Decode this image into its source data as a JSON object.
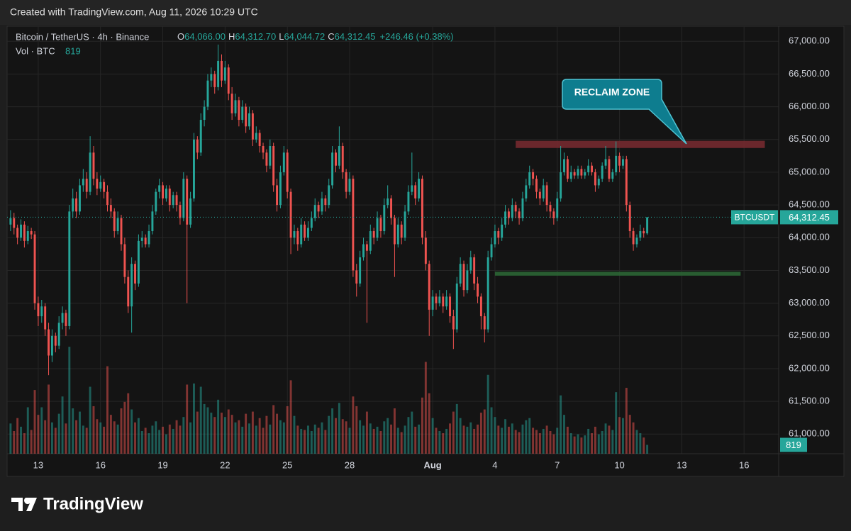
{
  "header": {
    "created": "Created with TradingView.com, Aug 11, 2026 10:29 UTC"
  },
  "footer": {
    "brand": "TradingView"
  },
  "chart_data": {
    "type": "candlestick",
    "title": "Bitcoin / TetherUS · 4h · Binance",
    "legend": [
      {
        "key": "O",
        "value": "64,066.00"
      },
      {
        "key": "H",
        "value": "64,312.70"
      },
      {
        "key": "L",
        "value": "64,044.72"
      },
      {
        "key": "C",
        "value": "64,312.45"
      }
    ],
    "change": "+246.46 (+0.38%)",
    "volume_title": "Vol · BTC",
    "volume_value": "819",
    "symbol": "BTCUSDT",
    "last_price_label": "64,312.45",
    "last_volume_label": "819",
    "annotation": "RECLAIM ZONE",
    "up_color": "#26a69a",
    "down_color": "#ef5350",
    "zones": [
      {
        "color": "#7a2a30",
        "y": [
          65370,
          65480
        ],
        "x": [
          146,
          218
        ]
      },
      {
        "color": "#2d6a36",
        "y": [
          63420,
          63480
        ],
        "x": [
          140,
          211
        ]
      }
    ],
    "ylim": [
      60700,
      67230
    ],
    "yticks": [
      {
        "value": 61000,
        "label": "61,000.00"
      },
      {
        "value": 61500,
        "label": "61,500.00"
      },
      {
        "value": 62000,
        "label": "62,000.00"
      },
      {
        "value": 62500,
        "label": "62,500.00"
      },
      {
        "value": 63000,
        "label": "63,000.00"
      },
      {
        "value": 63500,
        "label": "63,500.00"
      },
      {
        "value": 64000,
        "label": "64,000.00"
      },
      {
        "value": 64500,
        "label": "64,500.00"
      },
      {
        "value": 65000,
        "label": "65,000.00"
      },
      {
        "value": 65500,
        "label": "65,500.00"
      },
      {
        "value": 66000,
        "label": "66,000.00"
      },
      {
        "value": 66500,
        "label": "66,500.00"
      },
      {
        "value": 67000,
        "label": "67,000.00"
      }
    ],
    "xlim": [
      -1,
      222
    ],
    "xticks": [
      {
        "value": 8,
        "label": "13"
      },
      {
        "value": 26,
        "label": "16"
      },
      {
        "value": 44,
        "label": "19"
      },
      {
        "value": 62,
        "label": "22"
      },
      {
        "value": 80,
        "label": "25"
      },
      {
        "value": 98,
        "label": "28"
      },
      {
        "value": 122,
        "label": "Aug"
      },
      {
        "value": 140,
        "label": "4"
      },
      {
        "value": 158,
        "label": "7"
      },
      {
        "value": 176,
        "label": "10"
      },
      {
        "value": 194,
        "label": "13"
      },
      {
        "value": 212,
        "label": "16"
      }
    ],
    "y2lim": [
      0,
      10500
    ],
    "grid": true,
    "ohlc": [
      [
        64200,
        64420,
        64100,
        64300
      ],
      [
        64300,
        64380,
        64050,
        64150
      ],
      [
        64150,
        64200,
        63900,
        64000
      ],
      [
        64000,
        64280,
        63950,
        64200
      ],
      [
        64200,
        64250,
        63850,
        63950
      ],
      [
        63950,
        64180,
        63900,
        64100
      ],
      [
        64100,
        64150,
        63980,
        64050
      ],
      [
        64050,
        64100,
        62900,
        63000
      ],
      [
        63000,
        63100,
        62650,
        62800
      ],
      [
        62800,
        63050,
        62700,
        62950
      ],
      [
        62950,
        63000,
        62500,
        62600
      ],
      [
        62600,
        62700,
        61900,
        62200
      ],
      [
        62200,
        62600,
        62100,
        62500
      ],
      [
        62500,
        62550,
        62250,
        62350
      ],
      [
        62350,
        62800,
        62300,
        62700
      ],
      [
        62700,
        62950,
        62600,
        62850
      ],
      [
        62850,
        62900,
        62500,
        62650
      ],
      [
        62650,
        64500,
        62600,
        64400
      ],
      [
        64400,
        64750,
        64300,
        64600
      ],
      [
        64600,
        64700,
        64300,
        64400
      ],
      [
        64400,
        64900,
        64350,
        64800
      ],
      [
        64800,
        65050,
        64700,
        64900
      ],
      [
        64900,
        65000,
        64600,
        64700
      ],
      [
        64700,
        65550,
        64650,
        65300
      ],
      [
        65300,
        65400,
        64800,
        64900
      ],
      [
        64900,
        65000,
        64650,
        64750
      ],
      [
        64750,
        64950,
        64700,
        64850
      ],
      [
        64850,
        64900,
        64600,
        64700
      ],
      [
        64700,
        64800,
        64400,
        64500
      ],
      [
        64500,
        64600,
        64300,
        64400
      ],
      [
        64400,
        64450,
        64000,
        64100
      ],
      [
        64100,
        64400,
        64050,
        64300
      ],
      [
        64300,
        64350,
        63800,
        63900
      ],
      [
        63900,
        64000,
        63300,
        63400
      ],
      [
        63400,
        63500,
        62850,
        62950
      ],
      [
        62950,
        63700,
        62550,
        63600
      ],
      [
        63600,
        63650,
        63200,
        63300
      ],
      [
        63300,
        64050,
        63250,
        63950
      ],
      [
        63950,
        64100,
        63850,
        64000
      ],
      [
        64000,
        64050,
        63850,
        63900
      ],
      [
        63900,
        64200,
        63850,
        64100
      ],
      [
        64100,
        64500,
        64050,
        64400
      ],
      [
        64400,
        64750,
        64350,
        64700
      ],
      [
        64700,
        64900,
        64600,
        64800
      ],
      [
        64800,
        64850,
        64500,
        64600
      ],
      [
        64600,
        64800,
        64550,
        64750
      ],
      [
        64750,
        64800,
        64400,
        64500
      ],
      [
        64500,
        64700,
        64450,
        64650
      ],
      [
        64650,
        64700,
        64400,
        64500
      ],
      [
        64500,
        64550,
        64200,
        64300
      ],
      [
        64300,
        65000,
        64250,
        64900
      ],
      [
        64900,
        64950,
        63000,
        64200
      ],
      [
        64200,
        64700,
        64150,
        64600
      ],
      [
        64600,
        65600,
        64550,
        65500
      ],
      [
        65500,
        65550,
        65200,
        65300
      ],
      [
        65300,
        65900,
        65250,
        65800
      ],
      [
        65800,
        66100,
        65700,
        66000
      ],
      [
        66000,
        66500,
        65950,
        66400
      ],
      [
        66400,
        66600,
        66300,
        66500
      ],
      [
        66500,
        66550,
        66200,
        66300
      ],
      [
        66300,
        66950,
        66250,
        66700
      ],
      [
        66700,
        66800,
        66300,
        66400
      ],
      [
        66400,
        66700,
        66350,
        66600
      ],
      [
        66600,
        66650,
        66100,
        66200
      ],
      [
        66200,
        66300,
        65800,
        65900
      ],
      [
        65900,
        66200,
        65850,
        66100
      ],
      [
        66100,
        66150,
        65700,
        65800
      ],
      [
        65800,
        66100,
        65750,
        66000
      ],
      [
        66000,
        66050,
        65600,
        65700
      ],
      [
        65700,
        66000,
        65650,
        65900
      ],
      [
        65900,
        65950,
        65400,
        65500
      ],
      [
        65500,
        65700,
        65450,
        65600
      ],
      [
        65600,
        65650,
        65300,
        65400
      ],
      [
        65400,
        65450,
        65200,
        65300
      ],
      [
        65300,
        65350,
        65000,
        65100
      ],
      [
        65100,
        65500,
        65050,
        65400
      ],
      [
        65400,
        65450,
        64700,
        64800
      ],
      [
        64800,
        64900,
        64400,
        64500
      ],
      [
        64500,
        65100,
        64450,
        65000
      ],
      [
        65000,
        65400,
        64950,
        65300
      ],
      [
        65300,
        65350,
        64600,
        64700
      ],
      [
        64700,
        64750,
        63750,
        64000
      ],
      [
        64000,
        64200,
        63900,
        64100
      ],
      [
        64100,
        64150,
        63800,
        63900
      ],
      [
        63900,
        64300,
        63850,
        64200
      ],
      [
        64200,
        64250,
        63950,
        64000
      ],
      [
        64000,
        64250,
        63950,
        64150
      ],
      [
        64150,
        64400,
        64100,
        64300
      ],
      [
        64300,
        64600,
        64250,
        64500
      ],
      [
        64500,
        64550,
        64300,
        64400
      ],
      [
        64400,
        64700,
        64350,
        64600
      ],
      [
        64600,
        64650,
        64400,
        64500
      ],
      [
        64500,
        64900,
        64450,
        64800
      ],
      [
        64800,
        65400,
        64750,
        65300
      ],
      [
        65300,
        65350,
        65000,
        65100
      ],
      [
        65100,
        65700,
        65050,
        65400
      ],
      [
        65400,
        65450,
        64900,
        65000
      ],
      [
        65000,
        65050,
        64600,
        64700
      ],
      [
        64700,
        65000,
        64650,
        64900
      ],
      [
        64900,
        64950,
        63400,
        63500
      ],
      [
        63500,
        63600,
        63100,
        63300
      ],
      [
        63300,
        63800,
        63250,
        63700
      ],
      [
        63700,
        64000,
        63650,
        63900
      ],
      [
        63900,
        63950,
        62700,
        63800
      ],
      [
        63800,
        64200,
        63750,
        64100
      ],
      [
        64100,
        64150,
        63900,
        64000
      ],
      [
        64000,
        64400,
        63950,
        64300
      ],
      [
        64300,
        64350,
        64000,
        64100
      ],
      [
        64100,
        64600,
        64050,
        64500
      ],
      [
        64500,
        64800,
        64450,
        64600
      ],
      [
        64600,
        64650,
        64200,
        64300
      ],
      [
        64300,
        64350,
        63400,
        63900
      ],
      [
        63900,
        64300,
        63850,
        64200
      ],
      [
        64200,
        64250,
        63900,
        64000
      ],
      [
        64000,
        64500,
        63950,
        64400
      ],
      [
        64400,
        64800,
        64350,
        64700
      ],
      [
        64700,
        65300,
        64650,
        64800
      ],
      [
        64800,
        64850,
        64500,
        64600
      ],
      [
        64600,
        65000,
        64550,
        64900
      ],
      [
        64900,
        64950,
        63900,
        64000
      ],
      [
        64000,
        64100,
        63500,
        63600
      ],
      [
        63600,
        63650,
        62500,
        62900
      ],
      [
        62900,
        63200,
        62800,
        63100
      ],
      [
        63100,
        63150,
        62900,
        63000
      ],
      [
        63000,
        63200,
        62950,
        63100
      ],
      [
        63100,
        63150,
        62850,
        62950
      ],
      [
        62950,
        63200,
        62900,
        63100
      ],
      [
        63100,
        63150,
        62700,
        62800
      ],
      [
        62800,
        62900,
        62300,
        62600
      ],
      [
        62600,
        63400,
        62550,
        63300
      ],
      [
        63300,
        63700,
        63250,
        63600
      ],
      [
        63600,
        63650,
        63100,
        63200
      ],
      [
        63200,
        63600,
        63150,
        63500
      ],
      [
        63500,
        63800,
        63450,
        63700
      ],
      [
        63700,
        63750,
        63200,
        63300
      ],
      [
        63300,
        63400,
        63000,
        63100
      ],
      [
        63100,
        63150,
        62600,
        62800
      ],
      [
        62800,
        62850,
        62400,
        62600
      ],
      [
        62600,
        63800,
        62550,
        63700
      ],
      [
        63700,
        64000,
        63650,
        63900
      ],
      [
        63900,
        64200,
        63850,
        64100
      ],
      [
        64100,
        64150,
        63900,
        64000
      ],
      [
        64000,
        64300,
        63950,
        64200
      ],
      [
        64200,
        64500,
        64150,
        64400
      ],
      [
        64400,
        64450,
        64200,
        64300
      ],
      [
        64300,
        64600,
        64250,
        64500
      ],
      [
        64500,
        64550,
        64300,
        64400
      ],
      [
        64400,
        64450,
        64200,
        64300
      ],
      [
        64300,
        64700,
        64250,
        64600
      ],
      [
        64600,
        64900,
        64550,
        64800
      ],
      [
        64800,
        65100,
        64750,
        65000
      ],
      [
        65000,
        65050,
        64800,
        64900
      ],
      [
        64900,
        64950,
        64600,
        64700
      ],
      [
        64700,
        64750,
        64500,
        64600
      ],
      [
        64600,
        64900,
        64550,
        64800
      ],
      [
        64800,
        64850,
        64400,
        64500
      ],
      [
        64500,
        64550,
        64300,
        64400
      ],
      [
        64400,
        64450,
        64200,
        64300
      ],
      [
        64300,
        64700,
        64250,
        64600
      ],
      [
        64600,
        65400,
        64550,
        65000
      ],
      [
        65000,
        65300,
        64950,
        65200
      ],
      [
        65200,
        65250,
        64850,
        64900
      ],
      [
        64900,
        65100,
        64850,
        65000
      ],
      [
        65000,
        65050,
        64900,
        64950
      ],
      [
        64950,
        65100,
        64900,
        65050
      ],
      [
        65050,
        65100,
        64900,
        64950
      ],
      [
        64950,
        65050,
        64900,
        65000
      ],
      [
        65000,
        65200,
        64950,
        65100
      ],
      [
        65100,
        65150,
        64950,
        65000
      ],
      [
        65000,
        65050,
        64700,
        64800
      ],
      [
        64800,
        64950,
        64750,
        64900
      ],
      [
        64900,
        65150,
        64850,
        65100
      ],
      [
        65100,
        65400,
        65050,
        65200
      ],
      [
        65200,
        65250,
        64850,
        64900
      ],
      [
        64900,
        65050,
        64850,
        65000
      ],
      [
        65000,
        65470,
        64950,
        65250
      ],
      [
        65250,
        65300,
        65000,
        65100
      ],
      [
        65100,
        65250,
        65050,
        65200
      ],
      [
        65200,
        65250,
        64400,
        64500
      ],
      [
        64500,
        64550,
        64000,
        64100
      ],
      [
        64100,
        64150,
        63800,
        63900
      ],
      [
        63900,
        64050,
        63850,
        64000
      ],
      [
        64000,
        64200,
        63950,
        64100
      ],
      [
        64100,
        64150,
        64000,
        64066
      ],
      [
        64066,
        64312.7,
        64044.72,
        64312.45
      ]
    ],
    "volume": [
      2800,
      2100,
      3300,
      2500,
      1900,
      4300,
      2200,
      5900,
      3600,
      4300,
      3100,
      6400,
      2900,
      2400,
      3700,
      5300,
      2800,
      9900,
      4200,
      3100,
      3900,
      2600,
      2400,
      6200,
      4400,
      3200,
      2900,
      2500,
      8100,
      3600,
      3000,
      2700,
      4200,
      4800,
      5600,
      4100,
      2900,
      3300,
      2100,
      2400,
      1900,
      2600,
      3000,
      2200,
      2500,
      1800,
      2700,
      2300,
      3100,
      2600,
      3400,
      6400,
      2900,
      6500,
      3900,
      6200,
      4600,
      4300,
      3800,
      3400,
      5000,
      3800,
      3400,
      4100,
      3600,
      2900,
      3100,
      2500,
      3700,
      2800,
      3900,
      2600,
      3300,
      2400,
      3500,
      2700,
      4500,
      3700,
      3100,
      2900,
      4400,
      6800,
      3500,
      2600,
      2300,
      2200,
      2600,
      2100,
      2700,
      2400,
      2900,
      2200,
      3500,
      4200,
      3300,
      4700,
      3200,
      3000,
      2400,
      5300,
      4400,
      3100,
      2600,
      3900,
      2800,
      2300,
      2500,
      2100,
      3000,
      3300,
      2700,
      4200,
      2400,
      2000,
      2600,
      3400,
      3900,
      2500,
      2700,
      5200,
      8500,
      5600,
      3300,
      2400,
      2100,
      1900,
      2300,
      2800,
      3900,
      4600,
      3300,
      2600,
      2500,
      2900,
      2300,
      2700,
      3800,
      4100,
      7300,
      4300,
      3400,
      2600,
      2400,
      3200,
      2500,
      2800,
      2200,
      2000,
      2700,
      3100,
      3300,
      2400,
      2200,
      1900,
      2300,
      2600,
      2100,
      1800,
      2400,
      5400,
      3600,
      2500,
      1900,
      1600,
      1800,
      1500,
      1700,
      2300,
      1900,
      2500,
      1800,
      2100,
      2800,
      2600,
      2200,
      5700,
      3400,
      3300,
      6100,
      3600,
      2900,
      2200,
      1900,
      1500,
      819
    ]
  }
}
